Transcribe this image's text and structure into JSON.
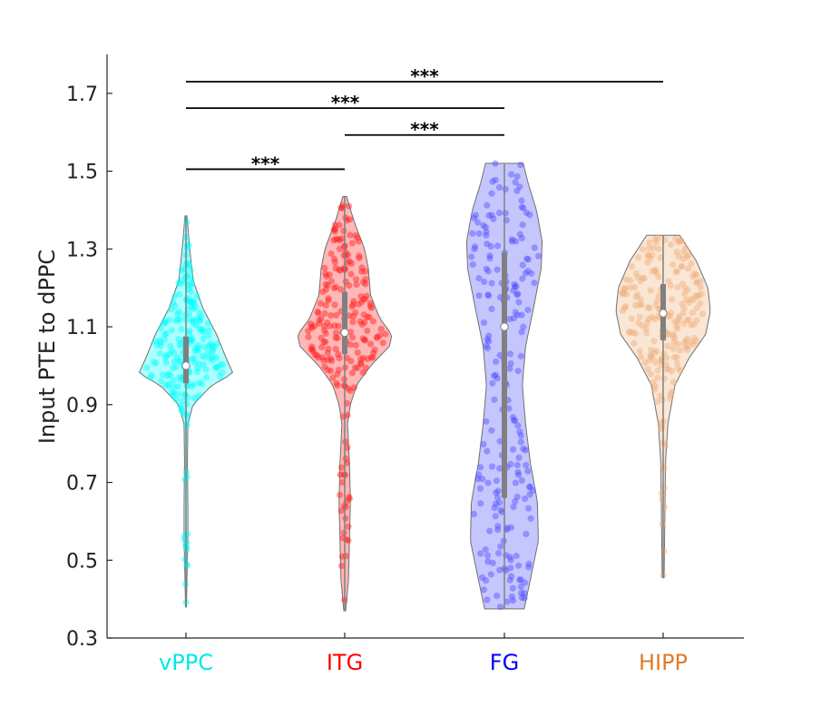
{
  "chart_data": {
    "type": "violin",
    "ylabel": "Input PTE to dPPC",
    "ylim": [
      0.3,
      1.8
    ],
    "yticks": [
      0.3,
      0.5,
      0.7,
      0.9,
      1.1,
      1.3,
      1.5,
      1.7
    ],
    "ytick_labels": [
      "0.3",
      "0.5",
      "0.7",
      "0.9",
      "1.1",
      "1.3",
      "1.5",
      "1.7"
    ],
    "grid": false,
    "series": [
      {
        "category": "vPPC",
        "color": "#00ffff",
        "label_color": "#00e8e8",
        "min": 0.38,
        "max": 1.385,
        "median": 1.0,
        "q1": 0.955,
        "q3": 1.075,
        "density": [
          [
            0.38,
            0.01
          ],
          [
            0.45,
            0.02
          ],
          [
            0.55,
            0.04
          ],
          [
            0.65,
            0.04
          ],
          [
            0.75,
            0.03
          ],
          [
            0.85,
            0.04
          ],
          [
            0.9,
            0.15
          ],
          [
            0.95,
            0.55
          ],
          [
            0.98,
            1.0
          ],
          [
            1.02,
            0.85
          ],
          [
            1.08,
            0.65
          ],
          [
            1.15,
            0.35
          ],
          [
            1.22,
            0.15
          ],
          [
            1.3,
            0.08
          ],
          [
            1.385,
            0.02
          ]
        ]
      },
      {
        "category": "ITG",
        "color": "#ff2020",
        "label_color": "#ff0000",
        "min": 0.37,
        "max": 1.435,
        "median": 1.085,
        "q1": 1.03,
        "q3": 1.19,
        "density": [
          [
            0.37,
            0.02
          ],
          [
            0.45,
            0.08
          ],
          [
            0.55,
            0.1
          ],
          [
            0.65,
            0.12
          ],
          [
            0.75,
            0.1
          ],
          [
            0.85,
            0.06
          ],
          [
            0.9,
            0.12
          ],
          [
            0.95,
            0.25
          ],
          [
            1.0,
            0.55
          ],
          [
            1.05,
            0.95
          ],
          [
            1.08,
            1.0
          ],
          [
            1.12,
            0.75
          ],
          [
            1.18,
            0.55
          ],
          [
            1.25,
            0.5
          ],
          [
            1.3,
            0.42
          ],
          [
            1.37,
            0.2
          ],
          [
            1.435,
            0.04
          ]
        ]
      },
      {
        "category": "FG",
        "color": "#4d4dff",
        "label_color": "#0000ff",
        "min": 0.375,
        "max": 1.52,
        "median": 1.1,
        "q1": 0.66,
        "q3": 1.29,
        "density": [
          [
            0.375,
            0.42
          ],
          [
            0.45,
            0.55
          ],
          [
            0.55,
            0.72
          ],
          [
            0.65,
            0.7
          ],
          [
            0.75,
            0.55
          ],
          [
            0.85,
            0.45
          ],
          [
            0.95,
            0.38
          ],
          [
            1.05,
            0.45
          ],
          [
            1.15,
            0.62
          ],
          [
            1.25,
            0.78
          ],
          [
            1.32,
            0.8
          ],
          [
            1.4,
            0.68
          ],
          [
            1.47,
            0.5
          ],
          [
            1.52,
            0.4
          ]
        ]
      },
      {
        "category": "HIPP",
        "color": "#f0b07c",
        "label_color": "#e07b2a",
        "min": 0.455,
        "max": 1.335,
        "median": 1.135,
        "q1": 1.065,
        "q3": 1.21,
        "density": [
          [
            0.455,
            0.02
          ],
          [
            0.55,
            0.03
          ],
          [
            0.65,
            0.04
          ],
          [
            0.75,
            0.05
          ],
          [
            0.85,
            0.1
          ],
          [
            0.95,
            0.25
          ],
          [
            1.02,
            0.55
          ],
          [
            1.08,
            0.9
          ],
          [
            1.14,
            1.0
          ],
          [
            1.2,
            0.95
          ],
          [
            1.27,
            0.7
          ],
          [
            1.335,
            0.35
          ]
        ]
      }
    ],
    "significance": [
      {
        "from": "vPPC",
        "to": "HIPP",
        "y": 1.73,
        "label": "***"
      },
      {
        "from": "vPPC",
        "to": "FG",
        "y": 1.662,
        "label": "***"
      },
      {
        "from": "ITG",
        "to": "FG",
        "y": 1.593,
        "label": "***"
      },
      {
        "from": "vPPC",
        "to": "ITG",
        "y": 1.505,
        "label": "***"
      }
    ]
  }
}
